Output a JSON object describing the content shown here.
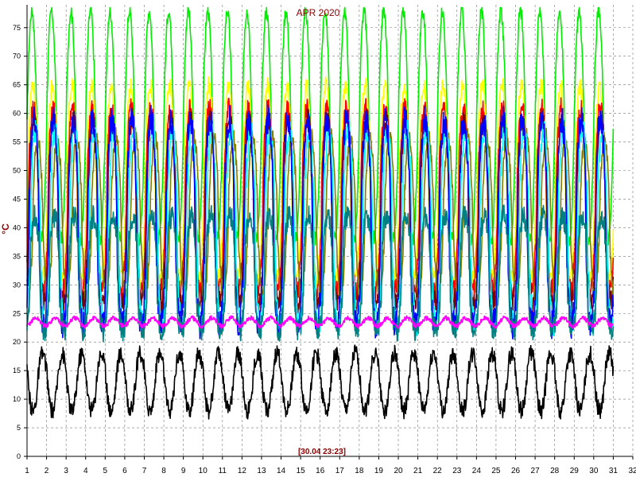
{
  "chart_data": {
    "type": "line",
    "title": "APR 2020",
    "ylabel": "°C",
    "timestamp": "[30.04 23:23]",
    "x_ticks": [
      "1",
      "2",
      "3",
      "4",
      "5",
      "6",
      "7",
      "8",
      "9",
      "10",
      "11",
      "12",
      "13",
      "14",
      "15",
      "16",
      "17",
      "18",
      "19",
      "20",
      "21",
      "22",
      "23",
      "24",
      "25",
      "26",
      "27",
      "28",
      "29",
      "30",
      "31",
      "32"
    ],
    "y_ticks": [
      "0",
      "5",
      "10",
      "15",
      "20",
      "25",
      "30",
      "35",
      "40",
      "45",
      "50",
      "55",
      "60",
      "65",
      "70",
      "75"
    ],
    "xlim": [
      1,
      32
    ],
    "ylim": [
      0,
      79
    ],
    "grid": true,
    "day_range": [
      1,
      31
    ],
    "series": [
      {
        "color": "#00ee00",
        "profile": {
          "base": 58,
          "amp": 20,
          "phase": 0.0,
          "noise": 1.2,
          "sharp": 0.35
        }
      },
      {
        "color": "#ffff00",
        "profile": {
          "base": 48,
          "amp": 17,
          "phase": 0.05,
          "noise": 1.5,
          "sharp": 0.6
        }
      },
      {
        "color": "#ff0000",
        "profile": {
          "base": 45,
          "amp": 16,
          "phase": 0.08,
          "noise": 1.8,
          "sharp": 0.7
        }
      },
      {
        "color": "#800000",
        "profile": {
          "base": 43,
          "amp": 16,
          "phase": 0.12,
          "noise": 2.0,
          "sharp": 0.6
        }
      },
      {
        "color": "#808000",
        "profile": {
          "base": 42,
          "amp": 14,
          "phase": 0.3,
          "noise": 1.5,
          "sharp": 0.5
        }
      },
      {
        "color": "#00ffff",
        "profile": {
          "base": 40,
          "amp": 17,
          "phase": 0.18,
          "noise": 2.0,
          "sharp": 0.7
        }
      },
      {
        "color": "#0000ff",
        "profile": {
          "base": 41,
          "amp": 18,
          "phase": 0.1,
          "noise": 2.5,
          "sharp": 0.8
        }
      },
      {
        "color": "#008080",
        "profile": {
          "base": 32,
          "amp": 10,
          "phase": 0.15,
          "noise": 2.0,
          "sharp": 0.9
        }
      },
      {
        "color": "#ff00ff",
        "profile": {
          "base": 23.5,
          "amp": 0.7,
          "phase": 0.2,
          "noise": 0.4,
          "sharp": 0.0
        }
      },
      {
        "color": "#000000",
        "profile": {
          "base": 13,
          "amp": 5,
          "phase": 0.55,
          "noise": 1.5,
          "sharp": 0.3
        }
      }
    ]
  }
}
